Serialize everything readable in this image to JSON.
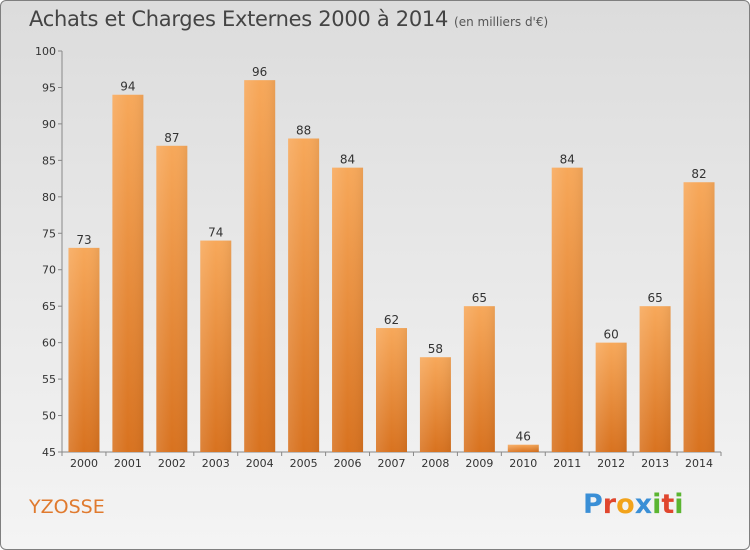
{
  "title": "Achats et Charges Externes 2000 à 2014",
  "subtitle": "(en milliers d'€)",
  "commune": "YZOSSE",
  "logo": {
    "letters": [
      {
        "ch": "P",
        "color": "#3a8fd6"
      },
      {
        "ch": "r",
        "color": "#e0462e"
      },
      {
        "ch": "o",
        "color": "#f2a31b"
      },
      {
        "ch": "x",
        "color": "#3a8fd6"
      },
      {
        "ch": "i",
        "color": "#5bb531"
      },
      {
        "ch": "t",
        "color": "#e0462e"
      },
      {
        "ch": "i",
        "color": "#5bb531"
      }
    ]
  },
  "colors": {
    "bar_top": "#f7a85a",
    "bar_bottom": "#d8721f",
    "axis": "#888888",
    "grid": "#bbbbbb",
    "text": "#333333",
    "commune": "#e07a2e"
  },
  "chart_data": {
    "type": "bar",
    "title": "Achats et Charges Externes 2000 à 2014",
    "subtitle": "(en milliers d'€)",
    "categories": [
      "2000",
      "2001",
      "2002",
      "2003",
      "2004",
      "2005",
      "2006",
      "2007",
      "2008",
      "2009",
      "2010",
      "2011",
      "2012",
      "2013",
      "2014"
    ],
    "values": [
      73,
      94,
      87,
      74,
      96,
      88,
      84,
      62,
      58,
      65,
      46,
      84,
      60,
      65,
      82
    ],
    "ylim": [
      45,
      100
    ],
    "yticks": [
      45,
      50,
      55,
      60,
      65,
      70,
      75,
      80,
      85,
      90,
      95,
      100
    ],
    "data_labels": true,
    "grid": false
  }
}
